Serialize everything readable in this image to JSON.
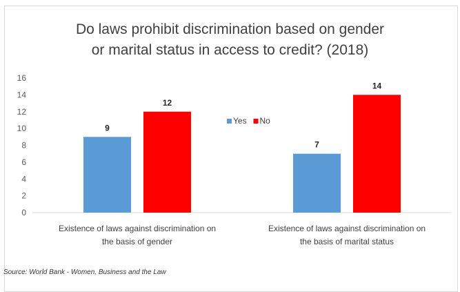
{
  "chart_data": {
    "type": "bar",
    "title_lines": [
      "Do laws prohibit discrimination based on gender",
      "or marital status in access to credit? (2018)"
    ],
    "categories": [
      [
        "Existence of laws against discrimination on",
        "the basis of gender"
      ],
      [
        "Existence of laws against discrimination on",
        "the basis of marital status"
      ]
    ],
    "series": [
      {
        "name": "Yes",
        "values": [
          9,
          7
        ],
        "color": "#5b9bd5"
      },
      {
        "name": "No",
        "values": [
          12,
          14
        ],
        "color": "#ff0000"
      }
    ],
    "ylim": [
      0,
      16
    ],
    "yticks": [
      0,
      2,
      4,
      6,
      8,
      10,
      12,
      14,
      16
    ],
    "grid": false,
    "legend_position": "center",
    "data_labels": true
  },
  "source": "Source: World Bank - Women, Business and the Law"
}
